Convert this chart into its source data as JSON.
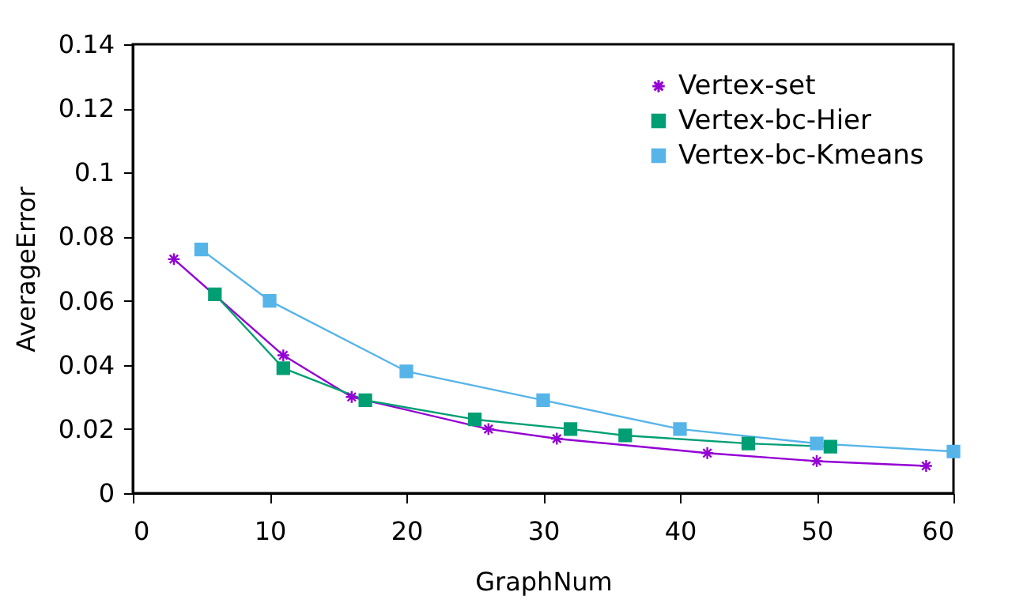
{
  "chart_data": {
    "type": "line",
    "xlabel": "GraphNum",
    "ylabel": "AverageError",
    "xlim": [
      0,
      60
    ],
    "xticks": [
      0,
      10,
      20,
      30,
      40,
      50,
      60
    ],
    "ylim": [
      0,
      0.14
    ],
    "yticks": [
      0,
      0.02,
      0.04,
      0.06,
      0.08,
      0.1,
      0.12,
      0.14
    ],
    "grid": false,
    "legend": "top right",
    "series": [
      {
        "name": "Vertex-set",
        "color": "#9400d3",
        "marker": "cross",
        "x": [
          3,
          11,
          16,
          26,
          31,
          42,
          50,
          58
        ],
        "values": [
          0.073,
          0.043,
          0.03,
          0.02,
          0.017,
          0.0125,
          0.01,
          0.0085
        ]
      },
      {
        "name": "Vertex-bc-Hier",
        "color": "#009e73",
        "marker": "square",
        "x": [
          6,
          11,
          17,
          25,
          32,
          36,
          45,
          51
        ],
        "values": [
          0.062,
          0.039,
          0.029,
          0.023,
          0.02,
          0.018,
          0.0155,
          0.0145
        ]
      },
      {
        "name": "Vertex-bc-Kmeans",
        "color": "#56b4e9",
        "marker": "square",
        "x": [
          5,
          10,
          20,
          30,
          40,
          50,
          60
        ],
        "values": [
          0.076,
          0.06,
          0.038,
          0.029,
          0.02,
          0.0155,
          0.013
        ]
      }
    ]
  }
}
